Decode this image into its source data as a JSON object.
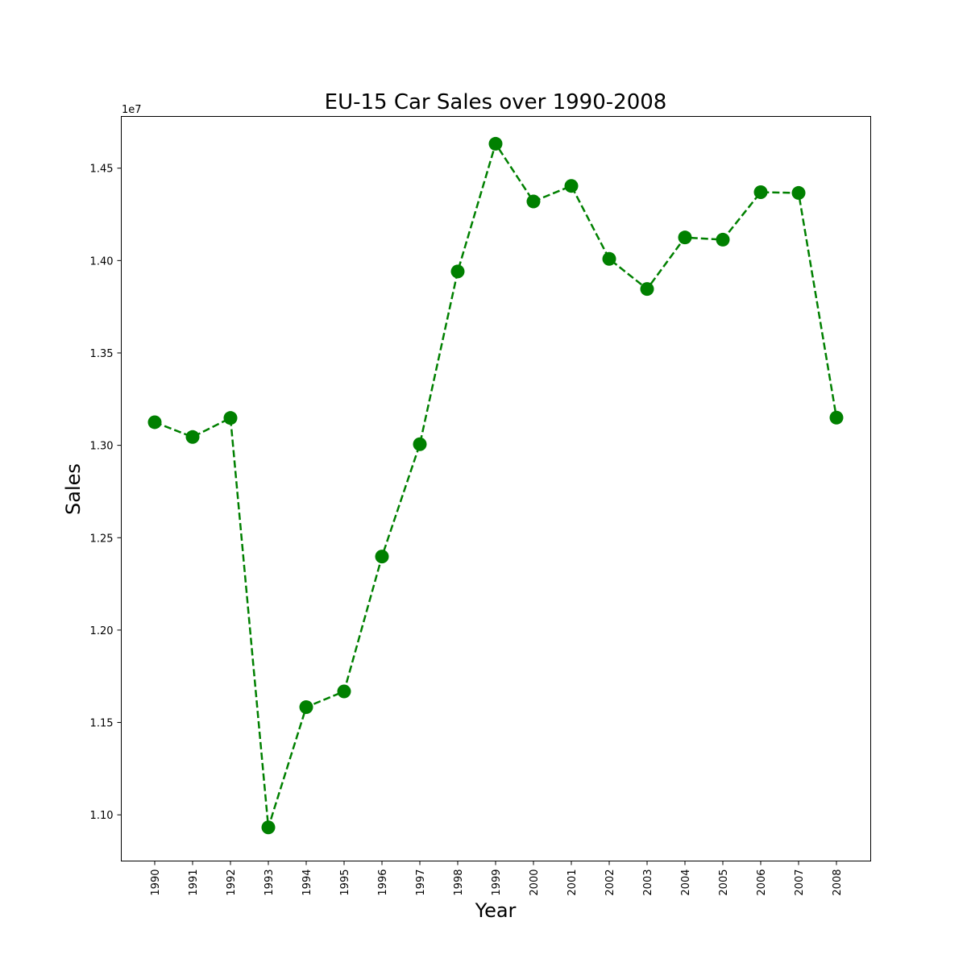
{
  "chart_data": {
    "type": "line",
    "title": "EU-15 Car Sales over 1990-2008",
    "xlabel": "Year",
    "ylabel": "Sales",
    "y_offset_label": "1e7",
    "categories": [
      "1990",
      "1991",
      "1992",
      "1993",
      "1994",
      "1995",
      "1996",
      "1997",
      "1998",
      "1999",
      "2000",
      "2001",
      "2002",
      "2003",
      "2004",
      "2005",
      "2006",
      "2007",
      "2008"
    ],
    "series": [
      {
        "values": [
          13125000,
          13045000,
          13148000,
          10932000,
          11583000,
          11668000,
          12398000,
          13006000,
          13941000,
          14632000,
          14320000,
          14404000,
          14009000,
          13846000,
          14125000,
          14113000,
          14370000,
          14366000,
          13150000
        ],
        "color": "#008000",
        "line_style": "dashed",
        "marker": "circle"
      }
    ],
    "ylim": [
      10750000,
      14780000
    ],
    "y_ticks": [
      11000000,
      11500000,
      12000000,
      12500000,
      13000000,
      13500000,
      14000000,
      14500000
    ],
    "y_tick_labels": [
      "1.10",
      "1.15",
      "1.20",
      "1.25",
      "1.30",
      "1.35",
      "1.40",
      "1.45"
    ],
    "grid": false,
    "x_tick_rotation": "vertical"
  }
}
